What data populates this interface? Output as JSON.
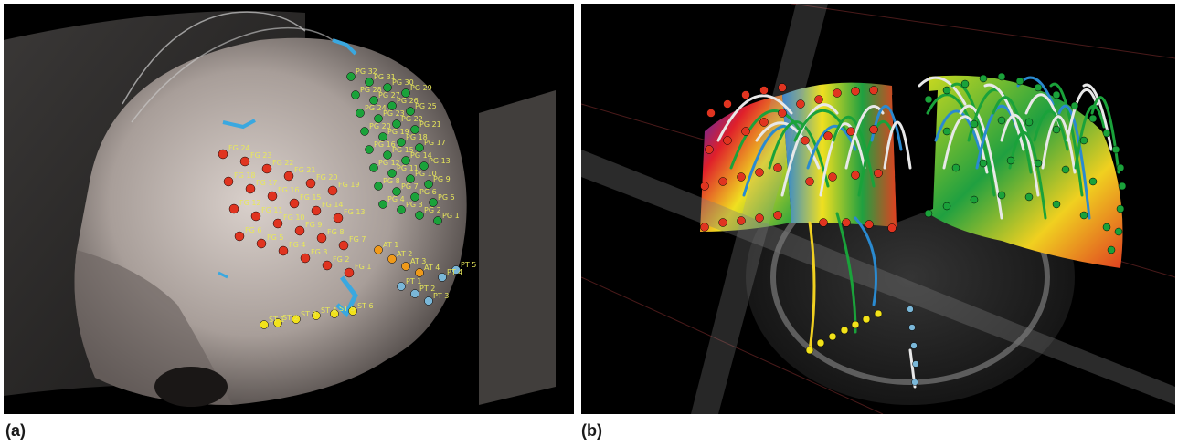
{
  "figure": {
    "panel_a": {
      "caption": "(a)"
    },
    "panel_b": {
      "caption": "(b)"
    }
  },
  "colors": {
    "background": "#000000",
    "skull": "#bdb3ad",
    "electrode_red": "#e03420",
    "electrode_green": "#1aa23a",
    "electrode_yellow": "#f2e21a",
    "electrode_orange": "#f09a1a",
    "electrode_blue": "#7ab7d8",
    "vessel_cyan": "#3aa8e0",
    "label_yellow": "#e8e85a"
  },
  "electrode_labels": {
    "red_grid": [
      "FG 24",
      "FG 23",
      "FG 22",
      "FG 21",
      "FG 20",
      "FG 19",
      "FG 18",
      "FG 17",
      "FG 16",
      "FG 15",
      "FG 14",
      "FG 13",
      "FG 12",
      "FG 11",
      "FG 10",
      "FG 9",
      "FG 8",
      "FG 7",
      "FG 6",
      "FG 5",
      "FG 4",
      "FG 3",
      "FG 2",
      "FG 1"
    ],
    "green_grid": [
      "PG 32",
      "PG 31",
      "PG 30",
      "PG 29",
      "PG 28",
      "PG 27",
      "PG 26",
      "PG 25",
      "PG 24",
      "PG 23",
      "PG 22",
      "PG 21",
      "PG 20",
      "PG 19",
      "PG 18",
      "PG 17",
      "PG 16",
      "PG 15",
      "PG 14",
      "PG 13",
      "PG 12",
      "PG 11",
      "PG 10",
      "PG 9",
      "PG 8",
      "PG 7",
      "PG 6",
      "PG 5",
      "PG 4",
      "PG 3",
      "PG 2",
      "PG 1"
    ],
    "temporal_strips": [
      "AT 1",
      "AT 2",
      "AT 3",
      "AT 4",
      "ST 1",
      "ST 2",
      "ST 3",
      "ST 4",
      "ST 5",
      "ST 6",
      "PT 1",
      "PT 2",
      "PT 3",
      "PT 4",
      "PT 5"
    ]
  }
}
